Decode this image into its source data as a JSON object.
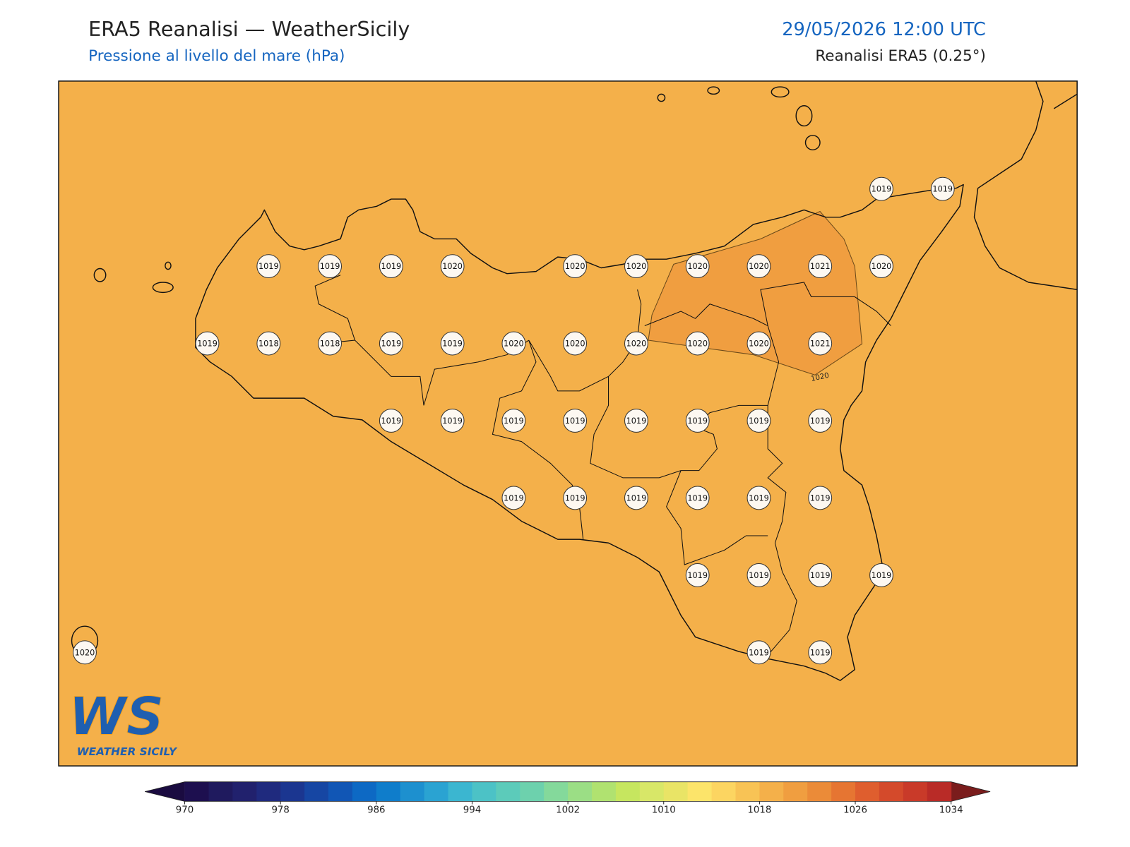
{
  "header": {
    "title": "ERA5 Reanalisi — WeatherSicily",
    "subtitle": "Pressione al livello del mare (hPa)",
    "datetime": "29/05/2026 12:00 UTC",
    "source": "Reanalisi ERA5 (0.25°)"
  },
  "map": {
    "stations": [
      [
        null,
        null,
        null,
        null,
        null,
        null,
        null,
        null,
        null,
        null,
        null,
        null,
        null,
        1019,
        1019
      ],
      [
        null,
        null,
        null,
        1019,
        1019,
        1019,
        1020,
        null,
        1020,
        1020,
        1020,
        1020,
        1021,
        1020,
        null
      ],
      [
        null,
        null,
        1019,
        1018,
        1018,
        1019,
        1019,
        1020,
        1020,
        1020,
        1020,
        1020,
        1021,
        null,
        null
      ],
      [
        null,
        null,
        null,
        null,
        null,
        1019,
        1019,
        1019,
        1019,
        1019,
        1019,
        1019,
        1019,
        null,
        null
      ],
      [
        null,
        null,
        null,
        null,
        null,
        null,
        null,
        1019,
        1019,
        1019,
        1019,
        1019,
        1019,
        null,
        null
      ],
      [
        null,
        null,
        null,
        null,
        null,
        null,
        null,
        null,
        null,
        null,
        1019,
        1019,
        1019,
        1019,
        null
      ],
      [
        1020,
        null,
        null,
        null,
        null,
        null,
        null,
        null,
        null,
        null,
        null,
        1019,
        1019,
        null,
        null
      ]
    ],
    "contour_label": "1020"
  },
  "colorbar": {
    "vlim": [
      970,
      1034
    ],
    "ticks": [
      970,
      978,
      986,
      994,
      1002,
      1010,
      1018,
      1026,
      1034
    ],
    "under_color": "#1a0b40",
    "over_color": "#7a1c1c",
    "colors": [
      "#1d0f4f",
      "#1f1a5e",
      "#21216d",
      "#1f2a7e",
      "#1b3690",
      "#1646a3",
      "#1156b5",
      "#0d69c4",
      "#0f7dcb",
      "#1d90cf",
      "#2aa3d2",
      "#3bb6d0",
      "#4cc2c6",
      "#5ccbba",
      "#6dd1ad",
      "#84d99b",
      "#9bde85",
      "#b0e270",
      "#c6e65f",
      "#d8e768",
      "#e9e466",
      "#fce46a",
      "#fcd561",
      "#f8c355",
      "#f4b04a",
      "#f09e40",
      "#eb8b38",
      "#e67532",
      "#df5e2e",
      "#d44a2b",
      "#c93a29",
      "#b92b27"
    ]
  },
  "logo": {
    "initials": "WS",
    "name": "WEATHER SICILY"
  }
}
